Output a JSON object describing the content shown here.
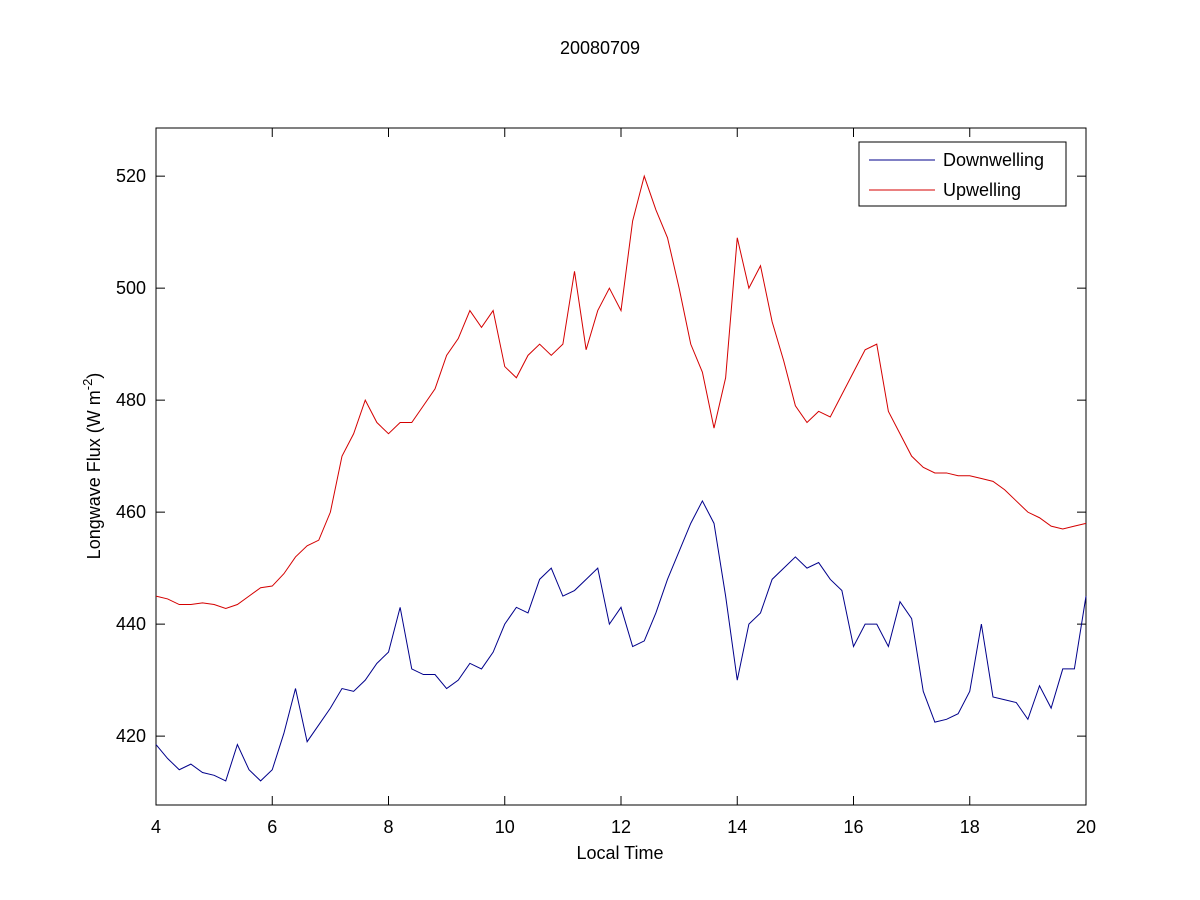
{
  "chart_data": {
    "type": "line",
    "title": "20080709",
    "xlabel": "Local Time",
    "ylabel": [
      "Longwave Flux (W m",
      "-2",
      ")"
    ],
    "xlim": [
      4,
      20
    ],
    "ylim": [
      407.7,
      528.6
    ],
    "xticks": [
      4,
      6,
      8,
      10,
      12,
      14,
      16,
      18,
      20
    ],
    "yticks": [
      420,
      440,
      460,
      480,
      500,
      520
    ],
    "grid": false,
    "legend": "northeast",
    "x": [
      4.0,
      4.2,
      4.4,
      4.6,
      4.8,
      5.0,
      5.2,
      5.4,
      5.6,
      5.8,
      6.0,
      6.2,
      6.4,
      6.6,
      6.8,
      7.0,
      7.2,
      7.4,
      7.6,
      7.8,
      8.0,
      8.2,
      8.4,
      8.6,
      8.8,
      9.0,
      9.2,
      9.4,
      9.6,
      9.8,
      10.0,
      10.2,
      10.4,
      10.6,
      10.8,
      11.0,
      11.2,
      11.4,
      11.6,
      11.8,
      12.0,
      12.2,
      12.4,
      12.6,
      12.8,
      13.0,
      13.2,
      13.4,
      13.6,
      13.8,
      14.0,
      14.2,
      14.4,
      14.6,
      14.8,
      15.0,
      15.2,
      15.4,
      15.6,
      15.8,
      16.0,
      16.2,
      16.4,
      16.6,
      16.8,
      17.0,
      17.2,
      17.4,
      17.6,
      17.8,
      18.0,
      18.2,
      18.4,
      18.6,
      18.8,
      19.0,
      19.2,
      19.4,
      19.6,
      19.8,
      20.0
    ],
    "series": [
      {
        "name": "Downwelling",
        "color": "#00008b",
        "values": [
          418.5,
          416,
          414,
          415,
          413.5,
          413,
          412,
          418.5,
          414,
          412,
          414,
          420.5,
          428.5,
          419,
          422,
          425,
          428.5,
          428,
          430,
          433,
          435,
          443,
          432,
          431,
          431,
          428.5,
          430,
          433,
          432,
          435,
          440,
          443,
          442,
          448,
          450,
          445,
          446,
          448,
          450,
          440,
          443,
          436,
          437,
          442,
          448,
          453,
          458,
          462,
          458,
          445,
          430,
          440,
          442,
          448,
          450,
          452,
          450,
          451,
          448,
          446,
          436,
          440,
          440,
          436,
          444,
          441,
          428,
          422.5,
          423,
          424,
          428,
          440,
          427,
          426.5,
          426,
          423,
          429,
          425,
          432,
          432,
          445
        ]
      },
      {
        "name": "Upwelling",
        "color": "#d40000",
        "values": [
          445,
          444.5,
          443.5,
          443.5,
          443.8,
          443.5,
          442.8,
          443.5,
          445,
          446.5,
          446.8,
          449,
          452,
          454,
          455,
          460,
          470,
          474,
          480,
          476,
          474,
          476,
          476,
          479,
          482,
          488,
          491,
          496,
          493,
          496,
          486,
          484,
          488,
          490,
          488,
          490,
          503,
          489,
          496,
          500,
          496,
          512,
          520,
          514,
          509,
          500,
          490,
          485,
          475,
          484,
          509,
          500,
          504,
          494,
          487,
          479,
          476,
          478,
          477,
          481,
          485,
          489,
          490,
          478,
          474,
          470,
          468,
          467,
          467,
          466.5,
          466.5,
          466,
          465.5,
          464,
          462,
          460,
          459,
          457.5,
          457,
          457.5,
          458
        ]
      }
    ]
  }
}
